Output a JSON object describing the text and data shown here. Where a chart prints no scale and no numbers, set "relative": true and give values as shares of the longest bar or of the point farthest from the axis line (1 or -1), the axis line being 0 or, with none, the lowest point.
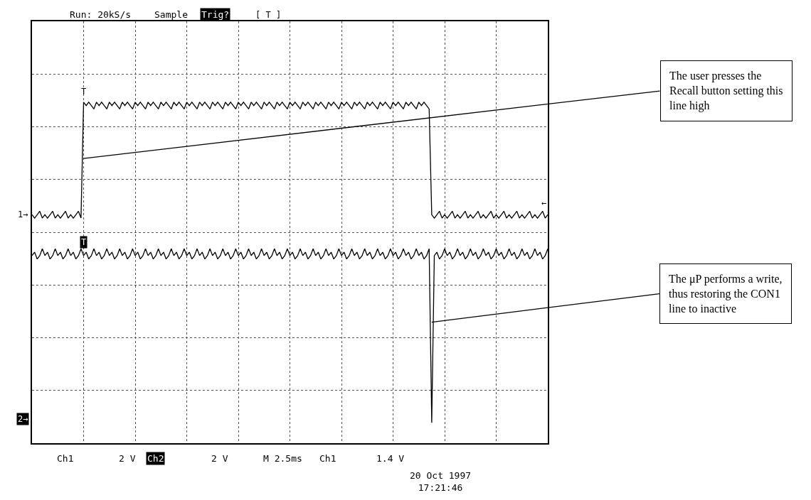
{
  "chart_data": {
    "type": "line",
    "relative": true,
    "grid": true,
    "marker": "none",
    "line_style": "solid",
    "categories": [
      null,
      null,
      null,
      null,
      null,
      null,
      null,
      null,
      null,
      null,
      null,
      null,
      null,
      null,
      null,
      null,
      null,
      null,
      null,
      null,
      null,
      null,
      null,
      null,
      null,
      null,
      null,
      null,
      null,
      null,
      null,
      null,
      null,
      null,
      null,
      null,
      null,
      null,
      null,
      null,
      null,
      null,
      null,
      null,
      null,
      null,
      null,
      null,
      null,
      null,
      null,
      null,
      null,
      null,
      null,
      null,
      null,
      null,
      null,
      null,
      null,
      null,
      null,
      null,
      null,
      null,
      null,
      null,
      null,
      null,
      null,
      null,
      null,
      null,
      null,
      null,
      null,
      null,
      null,
      null,
      null,
      null,
      null,
      null,
      null,
      null,
      null,
      null,
      null,
      null,
      null,
      null,
      null,
      null,
      null,
      null,
      null,
      null,
      null,
      null,
      null,
      null,
      null,
      null,
      null,
      null,
      null,
      null,
      null,
      null,
      null,
      null,
      null,
      null,
      null,
      null,
      null,
      null,
      null,
      null,
      null,
      null,
      null,
      null,
      null,
      null,
      null,
      null,
      null,
      null,
      null,
      null,
      null,
      null,
      null,
      null,
      null,
      null,
      null,
      null,
      null,
      null,
      null,
      null,
      null,
      null,
      null,
      null,
      null,
      null,
      null,
      null,
      null,
      null,
      null,
      null,
      null,
      null,
      null,
      null,
      null,
      null,
      null,
      null,
      null,
      null,
      null,
      null,
      null,
      null,
      null,
      null,
      null,
      null,
      null,
      null,
      null,
      null,
      null,
      null,
      null,
      null,
      null,
      null,
      null,
      null,
      null,
      null,
      null,
      null,
      null,
      null,
      null,
      null,
      null,
      null,
      null,
      null,
      null,
      null,
      null
    ],
    "series": [
      {
        "color": "#000000",
        "values": [
          0.67,
          0.66,
          0.67,
          0.68,
          0.66,
          0.67,
          0.66,
          0.67,
          0.68,
          0.66,
          0.67,
          0.66,
          0.67,
          0.68,
          0.66,
          0.67,
          0.66,
          0.67,
          0.68,
          0.66,
          1,
          0.99,
          1,
          0.99,
          0.98,
          1,
          0.99,
          1,
          0.99,
          0.98,
          1,
          0.99,
          1,
          0.99,
          0.98,
          1,
          0.99,
          1,
          0.99,
          0.98,
          1,
          0.99,
          1,
          0.99,
          0.98,
          1,
          0.99,
          1,
          0.99,
          0.98,
          1,
          0.99,
          1,
          0.99,
          0.98,
          1,
          0.99,
          1,
          0.99,
          0.98,
          1,
          0.99,
          1,
          0.99,
          0.98,
          1,
          0.99,
          1,
          0.99,
          0.98,
          1,
          0.99,
          1,
          0.99,
          0.98,
          1,
          0.99,
          1,
          0.99,
          0.98,
          1,
          0.99,
          1,
          0.99,
          0.98,
          1,
          0.99,
          1,
          0.99,
          0.98,
          1,
          0.99,
          1,
          0.99,
          0.98,
          1,
          0.99,
          1,
          0.99,
          0.98,
          1,
          0.99,
          1,
          0.99,
          0.98,
          1,
          0.99,
          1,
          0.99,
          0.98,
          1,
          0.99,
          1,
          0.99,
          0.98,
          1,
          0.99,
          1,
          0.99,
          0.98,
          1,
          0.99,
          1,
          0.99,
          0.98,
          1,
          0.99,
          1,
          0.99,
          0.98,
          1,
          0.99,
          1,
          0.99,
          0.98,
          1,
          0.99,
          1,
          0.99,
          0.98,
          1,
          0.99,
          1,
          0.99,
          0.98,
          1,
          0.99,
          1,
          0.99,
          0.98,
          1,
          0.99,
          1,
          0.99,
          0.98,
          0.67,
          0.66,
          0.67,
          0.68,
          0.66,
          0.67,
          0.66,
          0.67,
          0.68,
          0.66,
          0.67,
          0.66,
          0.67,
          0.68,
          0.66,
          0.67,
          0.66,
          0.67,
          0.68,
          0.66,
          0.67,
          0.66,
          0.67,
          0.68,
          0.66,
          0.67,
          0.66,
          0.67,
          0.68,
          0.66,
          0.67,
          0.66,
          0.67,
          0.68,
          0.66,
          0.67,
          0.66,
          0.67,
          0.68,
          0.66,
          0.67,
          0.66,
          0.67,
          0.68,
          0.66,
          0.67
        ]
      },
      {
        "color": "#000000",
        "values": [
          0.55,
          0.56,
          0.54,
          0.55,
          0.57,
          0.55,
          0.56,
          0.54,
          0.55,
          0.57,
          0.55,
          0.56,
          0.54,
          0.55,
          0.57,
          0.55,
          0.56,
          0.54,
          0.55,
          0.57,
          0.55,
          0.56,
          0.54,
          0.55,
          0.57,
          0.55,
          0.56,
          0.54,
          0.55,
          0.57,
          0.55,
          0.56,
          0.54,
          0.55,
          0.57,
          0.55,
          0.56,
          0.54,
          0.55,
          0.57,
          0.55,
          0.56,
          0.54,
          0.55,
          0.57,
          0.55,
          0.56,
          0.54,
          0.55,
          0.57,
          0.55,
          0.56,
          0.54,
          0.55,
          0.57,
          0.55,
          0.56,
          0.54,
          0.55,
          0.57,
          0.55,
          0.56,
          0.54,
          0.55,
          0.57,
          0.55,
          0.56,
          0.54,
          0.55,
          0.57,
          0.55,
          0.56,
          0.54,
          0.55,
          0.57,
          0.55,
          0.56,
          0.54,
          0.55,
          0.57,
          0.55,
          0.56,
          0.54,
          0.55,
          0.57,
          0.55,
          0.56,
          0.54,
          0.55,
          0.57,
          0.55,
          0.56,
          0.54,
          0.55,
          0.57,
          0.55,
          0.56,
          0.54,
          0.55,
          0.57,
          0.55,
          0.56,
          0.54,
          0.55,
          0.57,
          0.55,
          0.56,
          0.54,
          0.55,
          0.57,
          0.55,
          0.56,
          0.54,
          0.55,
          0.57,
          0.55,
          0.56,
          0.54,
          0.55,
          0.57,
          0.55,
          0.56,
          0.54,
          0.55,
          0.57,
          0.55,
          0.56,
          0.54,
          0.55,
          0.57,
          0.55,
          0.56,
          0.54,
          0.55,
          0.57,
          0.55,
          0.56,
          0.54,
          0.55,
          0.57,
          0.55,
          0.56,
          0.54,
          0.55,
          0.57,
          0.55,
          0.56,
          0.54,
          0.55,
          0.57,
          0.55,
          0.56,
          0.54,
          0.55,
          0.57,
          0.06,
          0.55,
          0.56,
          0.54,
          0.55,
          0.57,
          0.55,
          0.56,
          0.54,
          0.55,
          0.57,
          0.55,
          0.56,
          0.54,
          0.55,
          0.57,
          0.55,
          0.56,
          0.54,
          0.55,
          0.57,
          0.55,
          0.56,
          0.54,
          0.55,
          0.57,
          0.55,
          0.56,
          0.54,
          0.55,
          0.57,
          0.55,
          0.56,
          0.54,
          0.55,
          0.57,
          0.55,
          0.56,
          0.54,
          0.55,
          0.57,
          0.55,
          0.56,
          0.54,
          0.55,
          0.57
        ]
      }
    ],
    "annotations": [
      "Run: 20kS/s",
      "Sample",
      "Trig?",
      "Ch1",
      "2 V",
      "Ch2",
      "2 V",
      "M 2.5ms",
      "Ch1",
      "1.4 V",
      "20 Oct 1997\n17:21:46",
      "1→",
      "2→",
      "T",
      "T",
      "←",
      "[ T ]",
      "The user presses the\nRecall button setting this\nline high",
      "The μP performs a write,\nthus restoring the CON1\nline to inactive"
    ]
  }
}
